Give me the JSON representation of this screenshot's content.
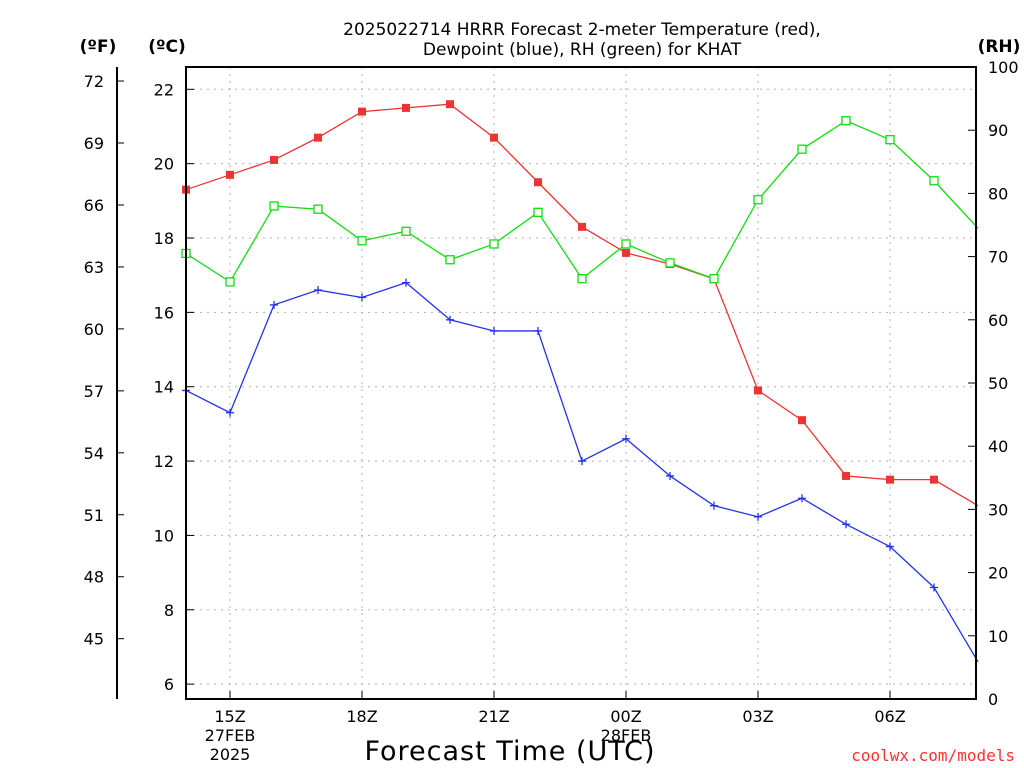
{
  "title_line1": "2025022714 HRRR Forecast 2-meter Temperature (red),",
  "title_line2": "Dewpoint (blue), RH (green) for KHAT",
  "units": {
    "f": "(ºF)",
    "c": "(ºC)",
    "rh": "(RH)"
  },
  "xlabel": "Forecast Time (UTC)",
  "credit": "coolwx.com/models",
  "colors": {
    "temperature": "#ee3333",
    "dewpoint": "#2233ee",
    "rh": "#11dd11"
  },
  "chart_data": {
    "type": "line",
    "x_hours_utc": [
      "14Z",
      "15Z",
      "16Z",
      "17Z",
      "18Z",
      "19Z",
      "20Z",
      "21Z",
      "22Z",
      "23Z",
      "00Z",
      "01Z",
      "02Z",
      "03Z",
      "04Z",
      "05Z",
      "06Z",
      "07Z",
      "08Z"
    ],
    "x_ticks": [
      {
        "label": "15Z",
        "sub1": "27FEB",
        "sub2": "2025",
        "hour": "15Z"
      },
      {
        "label": "18Z",
        "sub1": "",
        "sub2": "",
        "hour": "18Z"
      },
      {
        "label": "21Z",
        "sub1": "",
        "sub2": "",
        "hour": "21Z"
      },
      {
        "label": "00Z",
        "sub1": "28FEB",
        "sub2": "",
        "hour": "00Z"
      },
      {
        "label": "03Z",
        "sub1": "",
        "sub2": "",
        "hour": "03Z"
      },
      {
        "label": "06Z",
        "sub1": "",
        "sub2": "",
        "hour": "06Z"
      }
    ],
    "celsius_axis": {
      "ticks": [
        "6",
        "8",
        "10",
        "12",
        "14",
        "16",
        "18",
        "20",
        "22"
      ],
      "min": 5.6,
      "max": 22.6
    },
    "fahrenheit_axis": {
      "ticks": [
        "45",
        "48",
        "51",
        "54",
        "57",
        "60",
        "63",
        "66",
        "69",
        "72"
      ]
    },
    "rh_axis": {
      "ticks": [
        "0",
        "10",
        "20",
        "30",
        "40",
        "50",
        "60",
        "70",
        "80",
        "90",
        "100"
      ],
      "min": 0,
      "max": 100
    },
    "series": [
      {
        "name": "Temperature",
        "key": "temperature",
        "unit": "C",
        "marker": "filled-square",
        "values": [
          19.3,
          19.7,
          20.1,
          20.7,
          21.4,
          21.5,
          21.6,
          20.7,
          19.5,
          18.3,
          17.6,
          17.3,
          16.9,
          13.9,
          13.1,
          11.6,
          11.5,
          11.5,
          10.8
        ]
      },
      {
        "name": "Dewpoint",
        "key": "dewpoint",
        "unit": "C",
        "marker": "plus",
        "values": [
          13.9,
          13.3,
          16.2,
          16.6,
          16.4,
          16.8,
          15.8,
          15.5,
          15.5,
          12.0,
          12.6,
          11.6,
          10.8,
          10.5,
          11.0,
          10.3,
          9.7,
          8.6,
          6.6
        ]
      },
      {
        "name": "RH",
        "key": "rh",
        "unit": "%",
        "marker": "open-square",
        "values": [
          70.5,
          66,
          78,
          77.5,
          72.5,
          74,
          69.5,
          72,
          77,
          66.5,
          72,
          69,
          66.5,
          79,
          87,
          91.5,
          88.5,
          82,
          74.5
        ]
      }
    ]
  }
}
